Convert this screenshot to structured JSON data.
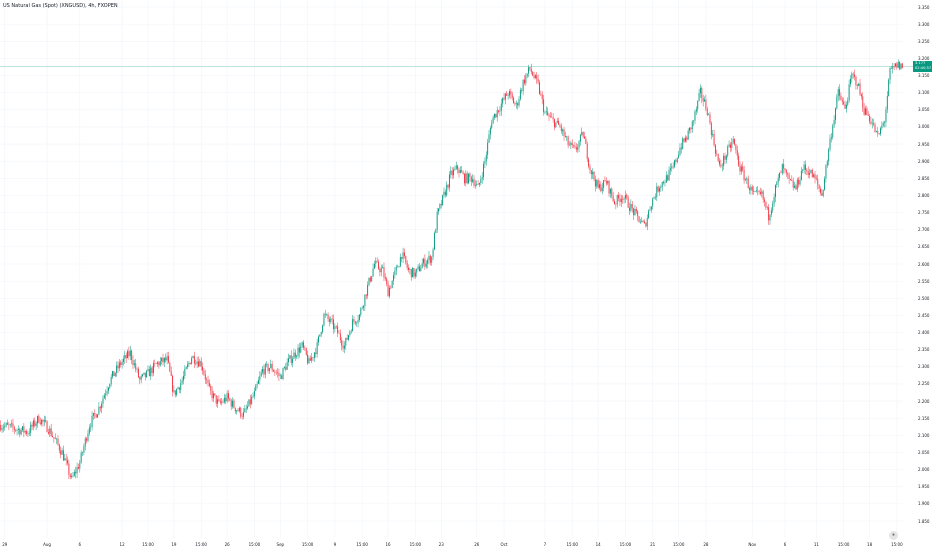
{
  "instrument_title": "US Natural Gas (Spot) (XNGUSD), 4h, FXOPEN",
  "colors": {
    "up": "#089981",
    "down": "#f23645",
    "grid": "#f0f3fa",
    "last_line": "#26a69a",
    "text": "#131722"
  },
  "last_price_badge": {
    "price": "3.177",
    "countdown": "02:40:57"
  },
  "logo_icon": "tradingview-logo-icon",
  "chart_data": {
    "type": "candlestick",
    "title": "US Natural Gas (Spot) (XNGUSD), 4h, FXOPEN",
    "timeframe": "4h",
    "ylim": [
      1.85,
      3.35
    ],
    "y_ticks": [
      "3.350",
      "3.300",
      "3.250",
      "3.200",
      "3.150",
      "3.100",
      "3.050",
      "3.000",
      "2.950",
      "2.900",
      "2.850",
      "2.800",
      "2.750",
      "2.700",
      "2.650",
      "2.600",
      "2.550",
      "2.500",
      "2.450",
      "2.400",
      "2.350",
      "2.300",
      "2.250",
      "2.200",
      "2.150",
      "2.100",
      "2.050",
      "2.000",
      "1.950",
      "1.900",
      "1.850"
    ],
    "x_ticks": [
      {
        "label": "29",
        "i": 3
      },
      {
        "label": "Aug",
        "i": 34
      },
      {
        "label": "6",
        "i": 58
      },
      {
        "label": "12",
        "i": 89
      },
      {
        "label": "15:00",
        "i": 108
      },
      {
        "label": "19",
        "i": 127
      },
      {
        "label": "15:00",
        "i": 147
      },
      {
        "label": "26",
        "i": 166
      },
      {
        "label": "15:00",
        "i": 186
      },
      {
        "label": "Sep",
        "i": 205
      },
      {
        "label": "15:00",
        "i": 225
      },
      {
        "label": "9",
        "i": 245
      },
      {
        "label": "15:00",
        "i": 265
      },
      {
        "label": "16",
        "i": 284
      },
      {
        "label": "15:00",
        "i": 304
      },
      {
        "label": "23",
        "i": 323
      },
      {
        "label": "26",
        "i": 349
      },
      {
        "label": "Oct",
        "i": 369
      },
      {
        "label": "7",
        "i": 399
      },
      {
        "label": "15:00",
        "i": 419
      },
      {
        "label": "14",
        "i": 438
      },
      {
        "label": "15:00",
        "i": 458
      },
      {
        "label": "21",
        "i": 478
      },
      {
        "label": "15:00",
        "i": 497
      },
      {
        "label": "28",
        "i": 517
      },
      {
        "label": "Nov",
        "i": 551
      },
      {
        "label": "6",
        "i": 575
      },
      {
        "label": "11",
        "i": 598
      },
      {
        "label": "15:00",
        "i": 618
      },
      {
        "label": "18",
        "i": 637
      },
      {
        "label": "15:00",
        "i": 657
      }
    ],
    "n_bars": 662,
    "close_path": [
      [
        0,
        2.13
      ],
      [
        10,
        2.12
      ],
      [
        20,
        2.11
      ],
      [
        28,
        2.15
      ],
      [
        35,
        2.12
      ],
      [
        45,
        2.05
      ],
      [
        52,
        1.97
      ],
      [
        58,
        2.02
      ],
      [
        65,
        2.13
      ],
      [
        72,
        2.18
      ],
      [
        80,
        2.26
      ],
      [
        88,
        2.31
      ],
      [
        95,
        2.34
      ],
      [
        102,
        2.26
      ],
      [
        108,
        2.28
      ],
      [
        115,
        2.31
      ],
      [
        122,
        2.32
      ],
      [
        127,
        2.22
      ],
      [
        133,
        2.26
      ],
      [
        140,
        2.33
      ],
      [
        147,
        2.31
      ],
      [
        153,
        2.23
      ],
      [
        160,
        2.19
      ],
      [
        166,
        2.21
      ],
      [
        172,
        2.18
      ],
      [
        178,
        2.16
      ],
      [
        186,
        2.22
      ],
      [
        192,
        2.29
      ],
      [
        198,
        2.3
      ],
      [
        205,
        2.27
      ],
      [
        210,
        2.31
      ],
      [
        216,
        2.34
      ],
      [
        221,
        2.36
      ],
      [
        226,
        2.31
      ],
      [
        232,
        2.36
      ],
      [
        237,
        2.45
      ],
      [
        242,
        2.43
      ],
      [
        247,
        2.4
      ],
      [
        252,
        2.36
      ],
      [
        258,
        2.43
      ],
      [
        263,
        2.45
      ],
      [
        268,
        2.52
      ],
      [
        274,
        2.6
      ],
      [
        280,
        2.58
      ],
      [
        284,
        2.52
      ],
      [
        289,
        2.57
      ],
      [
        294,
        2.63
      ],
      [
        299,
        2.58
      ],
      [
        304,
        2.57
      ],
      [
        309,
        2.6
      ],
      [
        316,
        2.62
      ],
      [
        320,
        2.74
      ],
      [
        325,
        2.8
      ],
      [
        330,
        2.86
      ],
      [
        335,
        2.88
      ],
      [
        340,
        2.85
      ],
      [
        346,
        2.85
      ],
      [
        350,
        2.82
      ],
      [
        355,
        2.9
      ],
      [
        360,
        3.02
      ],
      [
        366,
        3.06
      ],
      [
        372,
        3.1
      ],
      [
        378,
        3.06
      ],
      [
        383,
        3.13
      ],
      [
        388,
        3.17
      ],
      [
        394,
        3.12
      ],
      [
        399,
        3.04
      ],
      [
        404,
        3.02
      ],
      [
        410,
        3.0
      ],
      [
        416,
        2.95
      ],
      [
        421,
        2.93
      ],
      [
        427,
        2.98
      ],
      [
        432,
        2.88
      ],
      [
        438,
        2.82
      ],
      [
        444,
        2.84
      ],
      [
        450,
        2.78
      ],
      [
        456,
        2.8
      ],
      [
        461,
        2.77
      ],
      [
        466,
        2.74
      ],
      [
        472,
        2.71
      ],
      [
        477,
        2.78
      ],
      [
        483,
        2.83
      ],
      [
        488,
        2.85
      ],
      [
        493,
        2.88
      ],
      [
        498,
        2.94
      ],
      [
        503,
        2.97
      ],
      [
        508,
        3.02
      ],
      [
        513,
        3.1
      ],
      [
        518,
        3.05
      ],
      [
        522,
        2.97
      ],
      [
        527,
        2.88
      ],
      [
        532,
        2.92
      ],
      [
        537,
        2.96
      ],
      [
        542,
        2.88
      ],
      [
        547,
        2.84
      ],
      [
        552,
        2.8
      ],
      [
        558,
        2.8
      ],
      [
        563,
        2.74
      ],
      [
        568,
        2.82
      ],
      [
        573,
        2.88
      ],
      [
        578,
        2.84
      ],
      [
        583,
        2.82
      ],
      [
        588,
        2.88
      ],
      [
        593,
        2.87
      ],
      [
        598,
        2.84
      ],
      [
        602,
        2.8
      ],
      [
        608,
        2.96
      ],
      [
        614,
        3.1
      ],
      [
        619,
        3.05
      ],
      [
        624,
        3.15
      ],
      [
        628,
        3.13
      ],
      [
        633,
        3.05
      ],
      [
        638,
        3.02
      ],
      [
        643,
        2.97
      ],
      [
        648,
        3.02
      ],
      [
        652,
        3.16
      ],
      [
        657,
        3.18
      ],
      [
        661,
        3.177
      ]
    ]
  }
}
